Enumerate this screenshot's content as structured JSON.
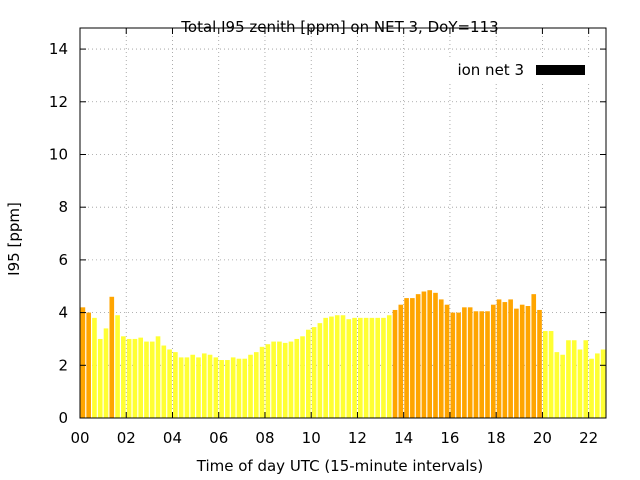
{
  "chart_data": {
    "type": "bar",
    "title": "Total I95 zenith [ppm] on NET 3, DoY=113",
    "xlabel": "Time of day UTC (15-minute intervals)",
    "ylabel": "I95 [ppm]",
    "xlim": [
      0,
      22.75
    ],
    "ylim": [
      0,
      14.8
    ],
    "x_ticks": [
      0,
      2,
      4,
      6,
      8,
      10,
      12,
      14,
      16,
      18,
      20,
      22
    ],
    "x_tick_labels": [
      "00",
      "02",
      "04",
      "06",
      "08",
      "10",
      "12",
      "14",
      "16",
      "18",
      "20",
      "22"
    ],
    "y_ticks": [
      0,
      2,
      4,
      6,
      8,
      10,
      12,
      14
    ],
    "y_tick_labels": [
      "0",
      "2",
      "4",
      "6",
      "8",
      "10",
      "12",
      "14"
    ],
    "grid": true,
    "legend": {
      "label": "ion net 3",
      "position": "top-right",
      "color": "#000000"
    },
    "colors": {
      "low": "#ffff33",
      "high": "#ffa500",
      "threshold": 4.0
    },
    "series": [
      {
        "x_start": 0,
        "step": 0.25,
        "values": [
          4.2,
          4.0,
          3.8,
          3.0,
          3.4,
          4.6,
          3.9,
          3.1,
          3.0,
          3.0,
          3.05,
          2.9,
          2.9,
          3.1,
          2.75,
          2.6,
          2.5,
          2.3,
          2.3,
          2.4,
          2.3,
          2.45,
          2.4,
          2.3,
          2.2,
          2.2,
          2.3,
          2.25,
          2.25,
          2.4,
          2.5,
          2.7,
          2.8,
          2.9,
          2.9,
          2.85,
          2.9,
          3.0,
          3.1,
          3.35,
          3.45,
          3.6,
          3.8,
          3.85,
          3.9,
          3.9,
          3.75,
          3.8,
          3.8,
          3.8,
          3.8,
          3.8,
          3.8,
          3.9,
          4.1,
          4.3,
          4.55,
          4.55,
          4.7,
          4.8,
          4.85,
          4.75,
          4.5,
          4.3,
          4.0,
          4.0,
          4.2,
          4.2,
          4.05,
          4.05,
          4.05,
          4.3,
          4.5,
          4.4,
          4.5,
          4.15,
          4.3,
          4.25,
          4.7,
          4.1,
          3.3,
          3.3,
          2.5,
          2.4,
          2.95,
          2.95,
          2.6,
          2.95,
          2.25,
          2.45,
          2.6
        ]
      }
    ]
  }
}
